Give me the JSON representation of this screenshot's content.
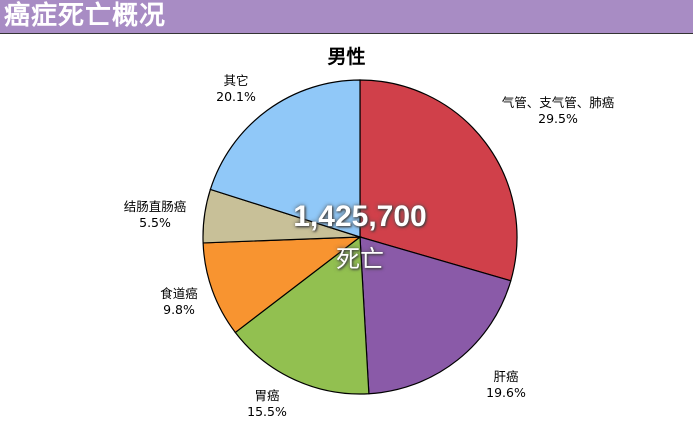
{
  "header": {
    "title": "癌症死亡概况"
  },
  "chart_data": {
    "type": "pie",
    "title": "男性",
    "center_value": "1,425,700",
    "center_unit": "死亡",
    "slices": [
      {
        "label": "气管、支气管、肺癌",
        "value": 29.5,
        "display": "29.5%",
        "color": "#d0404a"
      },
      {
        "label": "肝癌",
        "value": 19.6,
        "display": "19.6%",
        "color": "#8a5aa8"
      },
      {
        "label": "胃癌",
        "value": 15.5,
        "display": "15.5%",
        "color": "#92c050"
      },
      {
        "label": "食道癌",
        "value": 9.8,
        "display": "9.8%",
        "color": "#f89430"
      },
      {
        "label": "结肠直肠癌",
        "value": 5.5,
        "display": "5.5%",
        "color": "#c8c098"
      },
      {
        "label": "其它",
        "value": 20.1,
        "display": "20.1%",
        "color": "#90c8f8"
      }
    ]
  }
}
